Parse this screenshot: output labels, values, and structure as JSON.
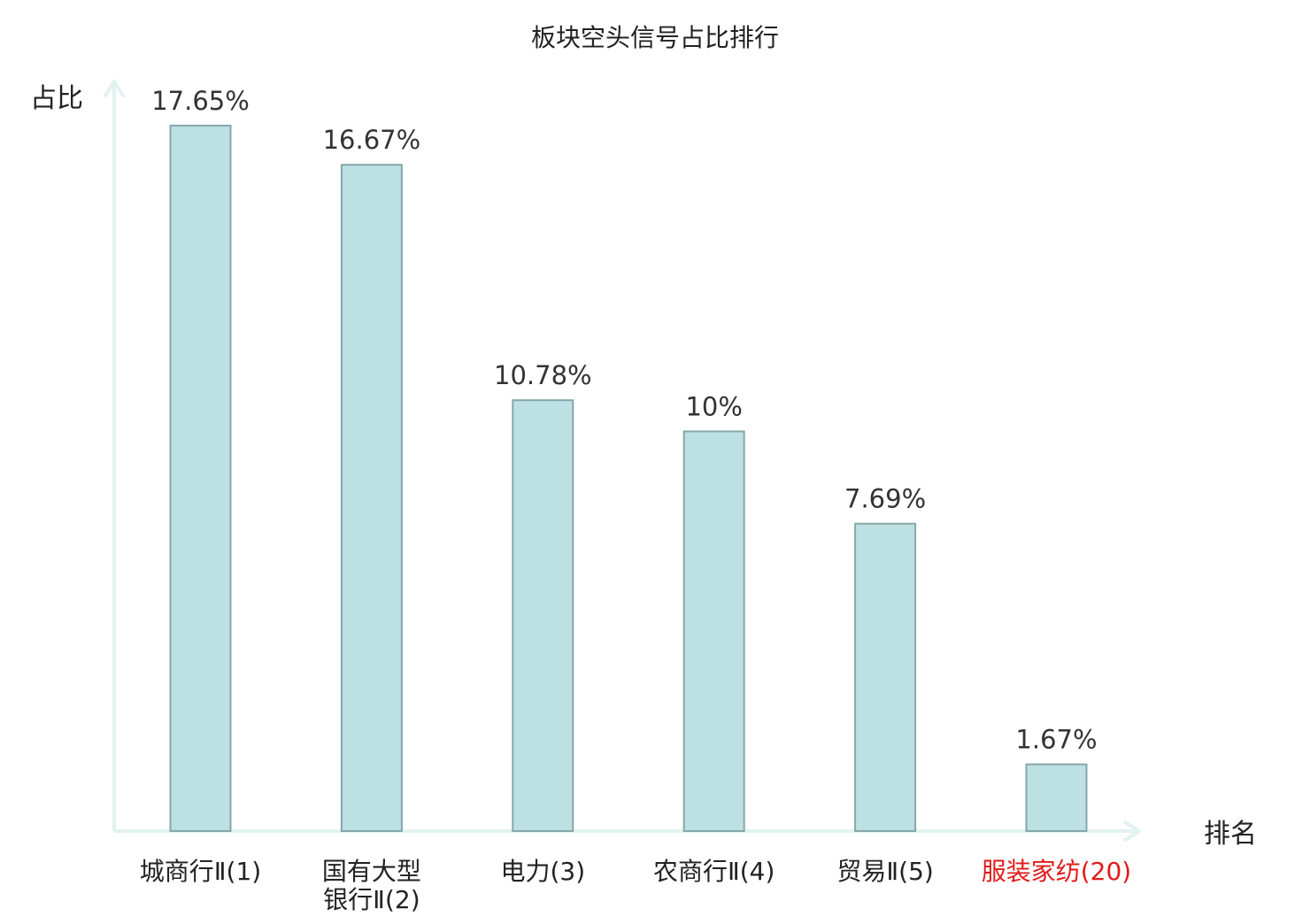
{
  "chart_data": {
    "type": "bar",
    "title": "板块空头信号占比排行",
    "ylabel": "占比",
    "xlabel": "排名",
    "ylim": [
      0,
      18.8
    ],
    "grid": false,
    "legend": "none",
    "categories": [
      {
        "lines": [
          "城商行Ⅱ(1)"
        ],
        "highlight": false
      },
      {
        "lines": [
          "国有大型",
          "银行Ⅱ(2)"
        ],
        "highlight": false
      },
      {
        "lines": [
          "电力(3)"
        ],
        "highlight": false
      },
      {
        "lines": [
          "农商行Ⅱ(4)"
        ],
        "highlight": false
      },
      {
        "lines": [
          "贸易Ⅱ(5)"
        ],
        "highlight": false
      },
      {
        "lines": [
          "服装家纺(20)"
        ],
        "highlight": true
      }
    ],
    "values": [
      17.65,
      16.67,
      10.78,
      10,
      7.69,
      1.67
    ],
    "value_labels": [
      "17.65%",
      "16.67%",
      "10.78%",
      "10%",
      "7.69%",
      "1.67%"
    ],
    "colors": {
      "bar_fill": "#bde0e3",
      "bar_stroke": "#86a7ab",
      "axis": "#e2f2f0",
      "label": "#222222",
      "highlight": "#e11b1b"
    }
  }
}
